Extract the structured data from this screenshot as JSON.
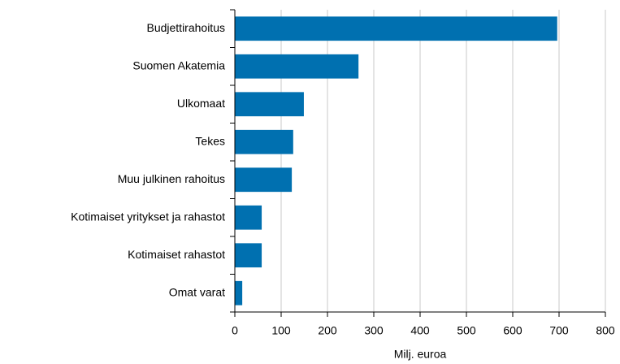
{
  "chart_data": {
    "type": "bar",
    "orientation": "horizontal",
    "categories": [
      "Budjettirahoitus",
      "Suomen Akatemia",
      "Ulkomaat",
      "Tekes",
      "Muu julkinen rahoitus",
      "Kotimaiset yritykset ja rahastot",
      "Kotimaiset rahastot",
      "Omat varat"
    ],
    "values": [
      696,
      267,
      149,
      126,
      123,
      58,
      58,
      16
    ],
    "color": "#0070b0",
    "xlabel": "Milj. euroa",
    "xlim": [
      0,
      800
    ],
    "xticks": [
      0,
      100,
      200,
      300,
      400,
      500,
      600,
      700,
      800
    ],
    "grid": true
  }
}
